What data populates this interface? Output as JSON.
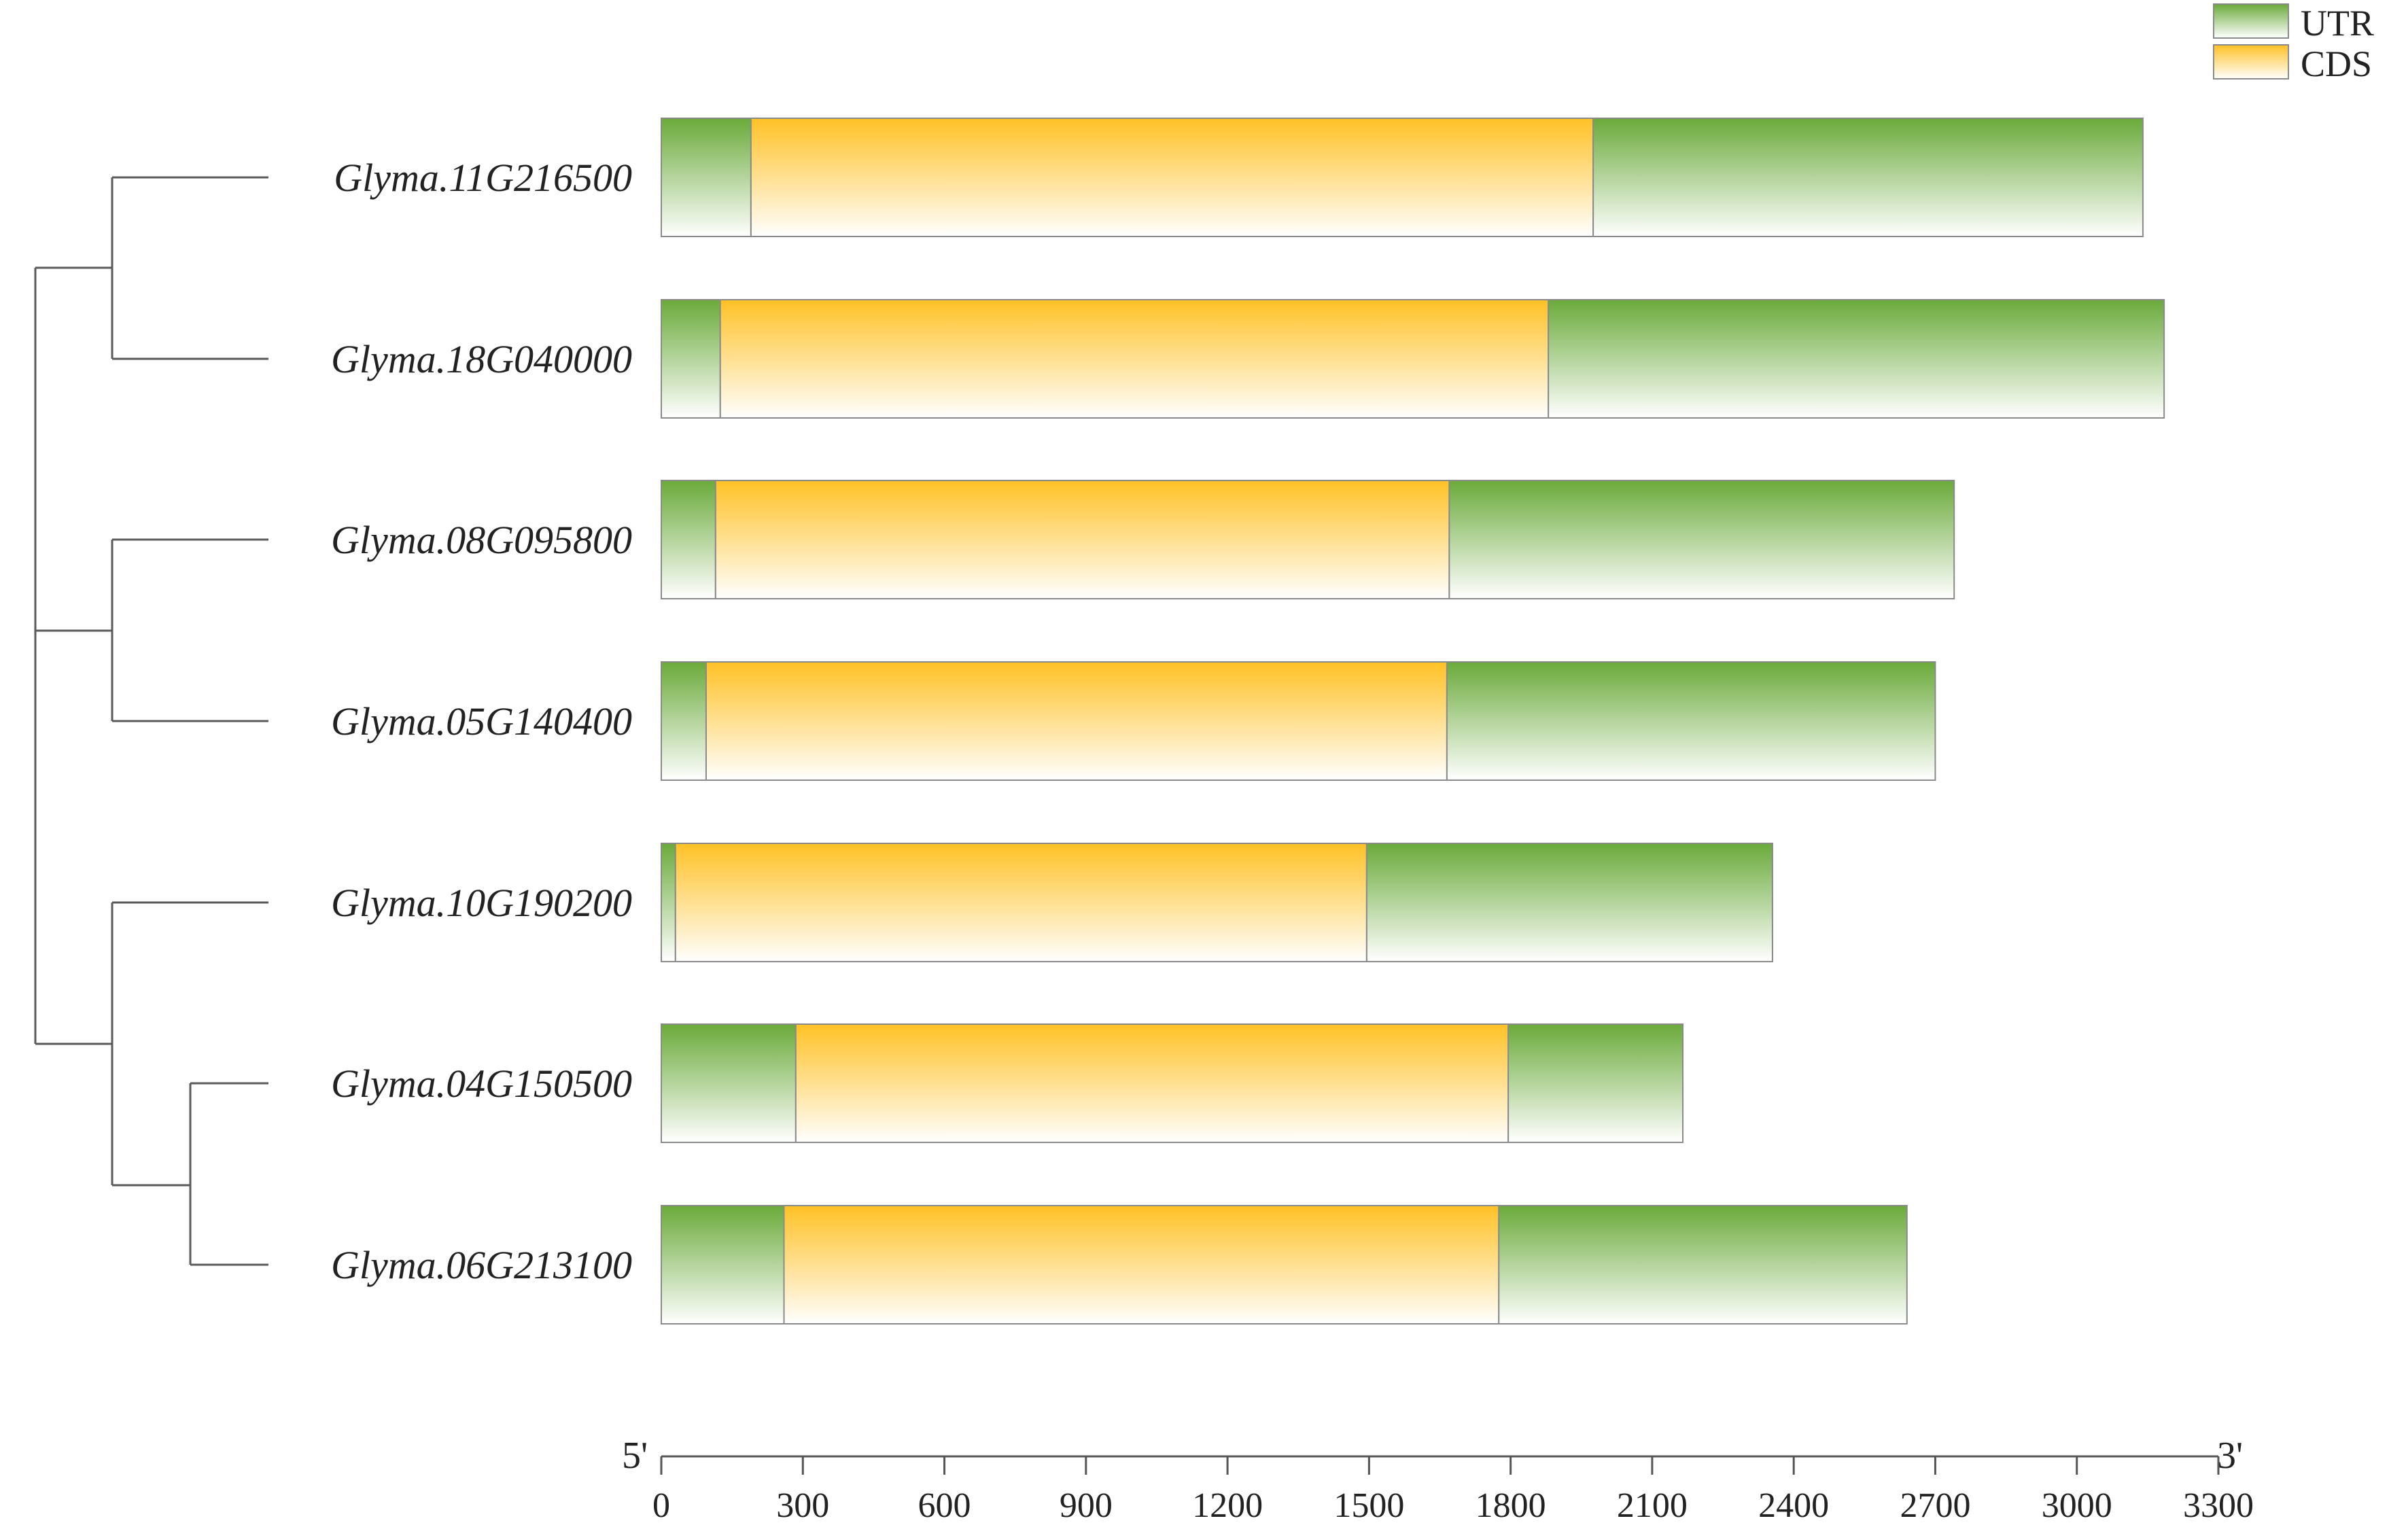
{
  "legend": {
    "utr": "UTR",
    "cds": "CDS"
  },
  "colors": {
    "utr_top": "#6aaa3a",
    "cds_top": "#ffc125",
    "outline": "#8a8a8a",
    "tree": "#5a5a5a"
  },
  "genes": [
    {
      "name": "Glyma.11G216500",
      "length": 3140,
      "utr5_end": 190,
      "cds_end": 1975
    },
    {
      "name": "Glyma.18G040000",
      "length": 3185,
      "utr5_end": 125,
      "cds_end": 1880
    },
    {
      "name": "Glyma.08G095800",
      "length": 2740,
      "utr5_end": 115,
      "cds_end": 1670
    },
    {
      "name": "Glyma.05G140400",
      "length": 2700,
      "utr5_end": 95,
      "cds_end": 1665
    },
    {
      "name": "Glyma.10G190200",
      "length": 2355,
      "utr5_end": 30,
      "cds_end": 1495
    },
    {
      "name": "Glyma.04G150500",
      "length": 2165,
      "utr5_end": 285,
      "cds_end": 1795
    },
    {
      "name": "Glyma.06G213100",
      "length": 2640,
      "utr5_end": 260,
      "cds_end": 1775
    }
  ],
  "axis": {
    "start_label": "5'",
    "end_label": "3'",
    "max": 3300,
    "ticks": [
      "0",
      "300",
      "600",
      "900",
      "1200",
      "1500",
      "1800",
      "2100",
      "2400",
      "2700",
      "3000",
      "3300"
    ]
  }
}
